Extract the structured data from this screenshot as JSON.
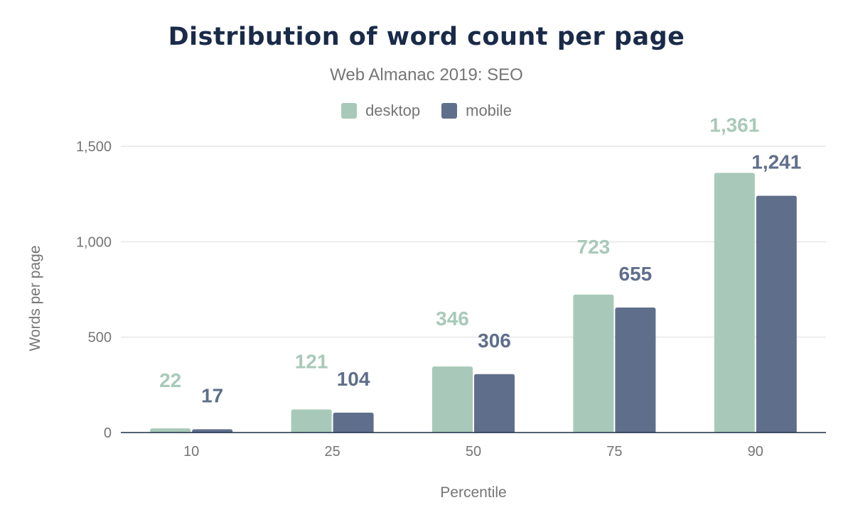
{
  "chart_data": {
    "type": "bar",
    "title": "Distribution of word count per page",
    "subtitle": "Web Almanac 2019: SEO",
    "xlabel": "Percentile",
    "ylabel": "Words per page",
    "categories": [
      "10",
      "25",
      "50",
      "75",
      "90"
    ],
    "series": [
      {
        "name": "desktop",
        "color": "#a8c9b9",
        "values": [
          22,
          121,
          346,
          723,
          1361
        ],
        "labels": [
          "22",
          "121",
          "346",
          "723",
          "1,361"
        ]
      },
      {
        "name": "mobile",
        "color": "#5f6f8b",
        "values": [
          17,
          104,
          306,
          655,
          1241
        ],
        "labels": [
          "17",
          "104",
          "306",
          "655",
          "1,241"
        ]
      }
    ],
    "ylim": [
      0,
      1500
    ],
    "yticks": [
      0,
      500,
      1000,
      1500
    ],
    "ytick_labels": [
      "0",
      "500",
      "1,000",
      "1,500"
    ],
    "grid": true,
    "legend": "top-center"
  }
}
